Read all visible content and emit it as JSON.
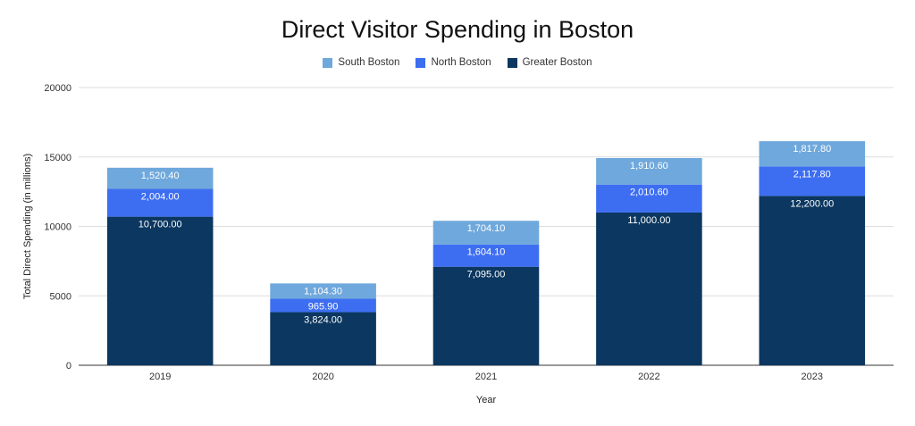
{
  "chart_data": {
    "type": "bar",
    "stacked": true,
    "title": "Direct Visitor Spending in Boston",
    "xlabel": "Year",
    "ylabel": "Total Direct Spending (in millions)",
    "categories": [
      "2019",
      "2020",
      "2021",
      "2022",
      "2023"
    ],
    "series": [
      {
        "name": "Greater Boston",
        "color": "#0b3760",
        "values": [
          10700,
          3824,
          7095,
          11000,
          12200
        ],
        "labels": [
          "10,700.00",
          "3,824.00",
          "7,095.00",
          "11,000.00",
          "12,200.00"
        ]
      },
      {
        "name": "North Boston",
        "color": "#3d6ef2",
        "values": [
          2004,
          965.9,
          1604.1,
          2010.6,
          2117.8
        ],
        "labels": [
          "2,004.00",
          "965.90",
          "1,604.10",
          "2,010.60",
          "2,117.80"
        ]
      },
      {
        "name": "South Boston",
        "color": "#6fa8dc",
        "values": [
          1520.4,
          1104.3,
          1704.1,
          1910.6,
          1817.8
        ],
        "labels": [
          "1,520.40",
          "1,104.30",
          "1,704.10",
          "1,910.60",
          "1,817.80"
        ]
      }
    ],
    "legend_order": [
      "South Boston",
      "North Boston",
      "Greater Boston"
    ],
    "legend_position": "top",
    "ylim": [
      0,
      20000
    ],
    "yticks": [
      "0",
      "5000",
      "10000",
      "15000",
      "20000"
    ],
    "grid": true
  }
}
